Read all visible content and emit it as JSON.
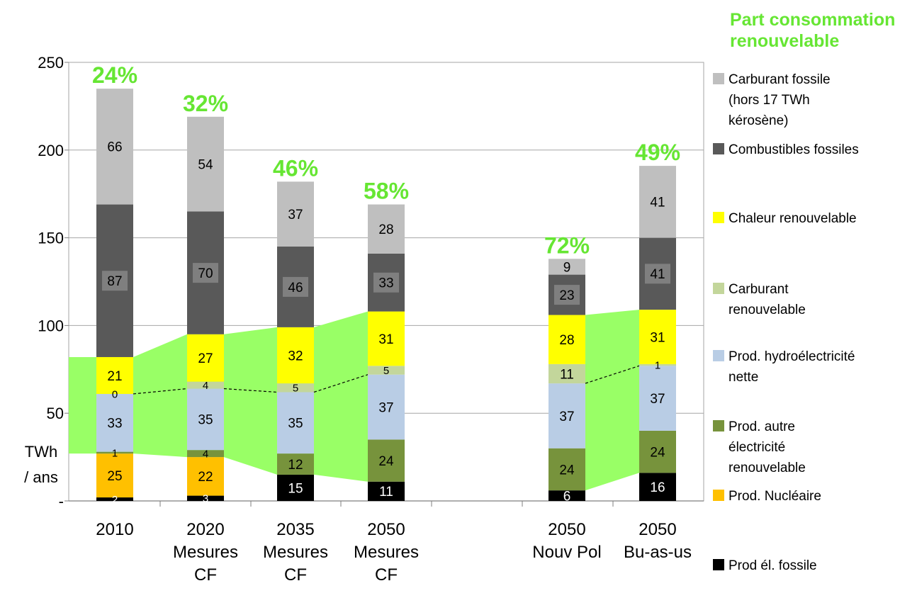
{
  "chart_data": {
    "type": "bar",
    "stacked": true,
    "categories": [
      [
        "2010"
      ],
      [
        "2020",
        "Mesures",
        "CF"
      ],
      [
        "2035",
        "Mesures",
        "CF"
      ],
      [
        "2050",
        "Mesures",
        "CF"
      ],
      [
        "2050",
        "Nouv Pol"
      ],
      [
        "2050",
        "Bu-as-us"
      ]
    ],
    "ylim": [
      0,
      250
    ],
    "yticks": [
      "-",
      "50",
      "100",
      "150",
      "200",
      "250"
    ],
    "ylabel": [
      "TWh",
      "/ ans"
    ],
    "grid": true,
    "legend_title": [
      "Part consommation",
      "renouvelable"
    ],
    "legend_position": "right",
    "renewable_share_labels": [
      "24%",
      "32%",
      "46%",
      "58%",
      "72%",
      "49%"
    ],
    "renewable_share_color": "#66e633",
    "series": [
      {
        "name": "Prod él. fossile",
        "legend_lines": [
          "Prod él. fossile"
        ],
        "color": "#000000",
        "label_color": "#ffffff",
        "values": [
          2,
          3,
          15,
          11,
          6,
          16
        ],
        "labels": [
          "2",
          "3",
          "15",
          "11",
          "6",
          "16"
        ]
      },
      {
        "name": "Prod. Nucléaire",
        "legend_lines": [
          "Prod. Nucléaire"
        ],
        "color": "#ffc000",
        "label_color": "#000000",
        "values": [
          25,
          22,
          0,
          0,
          0,
          0
        ],
        "labels": [
          "25",
          "22",
          "",
          "",
          "",
          ""
        ]
      },
      {
        "name": "Prod. autre électricité renouvelable",
        "legend_lines": [
          "Prod. autre",
          "électricité",
          "renouvelable"
        ],
        "color": "#77933c",
        "label_color": "#000000",
        "values": [
          1,
          4,
          12,
          24,
          24,
          24
        ],
        "labels": [
          "1",
          "4",
          "12",
          "24",
          "24",
          "24"
        ]
      },
      {
        "name": "Prod. hydroélectricité nette",
        "legend_lines": [
          "Prod. hydroélectricité",
          "nette"
        ],
        "color": "#b9cde5",
        "label_color": "#000000",
        "values": [
          33,
          35,
          35,
          37,
          37,
          37
        ],
        "labels": [
          "33",
          "35",
          "35",
          "37",
          "37",
          "37"
        ]
      },
      {
        "name": "Carburant renouvelable",
        "legend_lines": [
          "Carburant",
          "renouvelable"
        ],
        "color": "#c3d69b",
        "label_color": "#000000",
        "values": [
          0,
          4,
          5,
          5,
          11,
          1
        ],
        "labels": [
          "0",
          "4",
          "5",
          "5",
          "11",
          "1"
        ]
      },
      {
        "name": "Chaleur renouvelable",
        "legend_lines": [
          "Chaleur renouvelable"
        ],
        "color": "#ffff00",
        "label_color": "#000000",
        "values": [
          21,
          27,
          32,
          31,
          28,
          31
        ],
        "labels": [
          "21",
          "27",
          "32",
          "31",
          "28",
          "31"
        ]
      },
      {
        "name": "Combustibles fossiles",
        "legend_lines": [
          "Combustibles fossiles"
        ],
        "color": "#595959",
        "label_color": "#000000",
        "label_bg": "#7f7f7f",
        "values": [
          87,
          70,
          46,
          33,
          23,
          41
        ],
        "labels": [
          "87",
          "70",
          "46",
          "33",
          "23",
          "41"
        ]
      },
      {
        "name": "Carburant fossile (hors 17 TWh kérosène)",
        "legend_lines": [
          "Carburant fossile",
          "(hors 17 TWh",
          "kérosène)"
        ],
        "color": "#bfbfbf",
        "label_color": "#000000",
        "values": [
          66,
          54,
          37,
          28,
          9,
          41
        ],
        "labels": [
          "66",
          "54",
          "37",
          "28",
          "9",
          "41"
        ]
      }
    ],
    "renewable_band_color": "#99ff66"
  }
}
